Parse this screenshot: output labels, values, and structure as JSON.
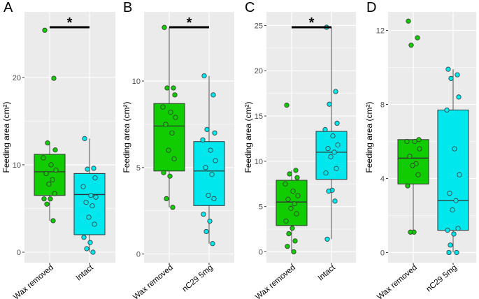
{
  "figure": {
    "colors": {
      "wax_removed": "#11CC00",
      "intact": "#00E8EE",
      "panel_bg": "#EBEBEB",
      "grid": "#FFFFFF",
      "axis_text": "#4D4D4D",
      "significance": "#000000"
    }
  },
  "chart_data": [
    {
      "type": "boxplot",
      "panel_label": "A",
      "ylabel": "Feeding area (cm²)",
      "categories": [
        "Wax removed",
        "Intact"
      ],
      "ylim": [
        -1.2,
        27.5
      ],
      "yticks": [
        0,
        10,
        20
      ],
      "grid": true,
      "significance": "*",
      "groups": [
        {
          "name": "Wax removed",
          "color": "#11CC00",
          "box": {
            "lower_whisker": 3.6,
            "q1": 6.5,
            "median": 9.2,
            "q3": 11.2,
            "upper_whisker": 12.5
          },
          "outliers": [
            19.9,
            25.4
          ],
          "points": [
            25.4,
            19.9,
            12.5,
            11.7,
            10.8,
            10.0,
            9.4,
            9.0,
            8.3,
            7.8,
            6.7,
            6.1,
            6.1,
            5.5,
            3.6
          ]
        },
        {
          "name": "Intact",
          "color": "#00E8EE",
          "box": {
            "lower_whisker": 0.0,
            "q1": 2.0,
            "median": 6.6,
            "q3": 9.0,
            "upper_whisker": 13.0
          },
          "outliers": [],
          "points": [
            13.0,
            9.6,
            9.5,
            8.5,
            7.5,
            6.5,
            6.3,
            5.7,
            5.3,
            4.0,
            3.2,
            1.7,
            1.1,
            0.4,
            0.0
          ]
        }
      ]
    },
    {
      "type": "boxplot",
      "panel_label": "B",
      "ylabel": "Feeding area (cm²)",
      "categories": [
        "Wax removed",
        "nC29 5mg"
      ],
      "ylim": [
        -0.5,
        14.0
      ],
      "yticks": [
        0,
        5,
        10
      ],
      "grid": true,
      "significance": "*",
      "groups": [
        {
          "name": "Wax removed",
          "color": "#11CC00",
          "box": {
            "lower_whisker": 2.7,
            "q1": 4.8,
            "median": 7.4,
            "q3": 8.7,
            "upper_whisker": 13.1
          },
          "outliers": [],
          "points": [
            13.1,
            9.6,
            9.6,
            9.2,
            8.5,
            8.2,
            7.9,
            7.5,
            7.0,
            6.0,
            5.5,
            4.7,
            4.5,
            3.2,
            2.7
          ]
        },
        {
          "name": "nC29 5mg",
          "color": "#00E8EE",
          "box": {
            "lower_whisker": 0.6,
            "q1": 2.8,
            "median": 4.8,
            "q3": 6.5,
            "upper_whisker": 10.3
          },
          "outliers": [],
          "points": [
            10.3,
            9.2,
            7.2,
            7.0,
            6.6,
            6.0,
            5.4,
            5.0,
            4.6,
            3.4,
            3.2,
            2.3,
            1.9,
            1.3,
            0.6
          ]
        }
      ]
    },
    {
      "type": "boxplot",
      "panel_label": "C",
      "ylabel": "Feeding area (cm²)",
      "categories": [
        "Wax removed",
        "Intact"
      ],
      "ylim": [
        -1.2,
        26.5
      ],
      "yticks": [
        0,
        5,
        10,
        15,
        20,
        25
      ],
      "grid": true,
      "significance": "*",
      "groups": [
        {
          "name": "Wax removed",
          "color": "#11CC00",
          "box": {
            "lower_whisker": 0.0,
            "q1": 2.9,
            "median": 5.5,
            "q3": 7.9,
            "upper_whisker": 9.0
          },
          "outliers": [
            16.2
          ],
          "points": [
            16.2,
            9.0,
            8.6,
            8.2,
            7.5,
            6.7,
            6.2,
            5.8,
            5.3,
            4.8,
            4.2,
            3.4,
            2.6,
            2.0,
            1.2,
            0.6,
            0.0
          ]
        },
        {
          "name": "Intact",
          "color": "#00E8EE",
          "box": {
            "lower_whisker": 1.4,
            "q1": 8.0,
            "median": 11.0,
            "q3": 13.3,
            "upper_whisker": 24.8
          },
          "outliers": [],
          "points": [
            24.8,
            17.7,
            16.3,
            14.2,
            13.5,
            12.8,
            11.8,
            11.4,
            11.0,
            10.5,
            9.2,
            8.7,
            6.8,
            6.7,
            5.6,
            1.4
          ]
        }
      ]
    },
    {
      "type": "boxplot",
      "panel_label": "D",
      "ylabel": "Feeding area (cm²)",
      "categories": [
        "Wax removed",
        "nC29 5mg"
      ],
      "ylim": [
        -0.55,
        13.0
      ],
      "yticks": [
        0,
        4,
        8,
        12
      ],
      "grid": true,
      "significance": "",
      "groups": [
        {
          "name": "Wax removed",
          "color": "#11CC00",
          "box": {
            "lower_whisker": 1.1,
            "q1": 3.7,
            "median": 5.1,
            "q3": 6.1,
            "upper_whisker": 6.1
          },
          "outliers": [
            11.2,
            11.6,
            12.5,
            1.1,
            1.1
          ],
          "points": [
            12.5,
            11.6,
            11.2,
            6.1,
            6.0,
            6.0,
            5.6,
            5.2,
            4.8,
            4.7,
            4.2,
            3.6,
            1.1,
            1.1
          ]
        },
        {
          "name": "nC29 5mg",
          "color": "#00E8EE",
          "box": {
            "lower_whisker": 0.0,
            "q1": 1.2,
            "median": 2.8,
            "q3": 7.7,
            "upper_whisker": 9.9
          },
          "outliers": [],
          "points": [
            9.9,
            9.6,
            9.4,
            8.4,
            7.7,
            5.6,
            4.2,
            3.2,
            2.8,
            2.3,
            1.3,
            1.2,
            1.0,
            0.4,
            0.0,
            0.0
          ]
        }
      ]
    }
  ]
}
